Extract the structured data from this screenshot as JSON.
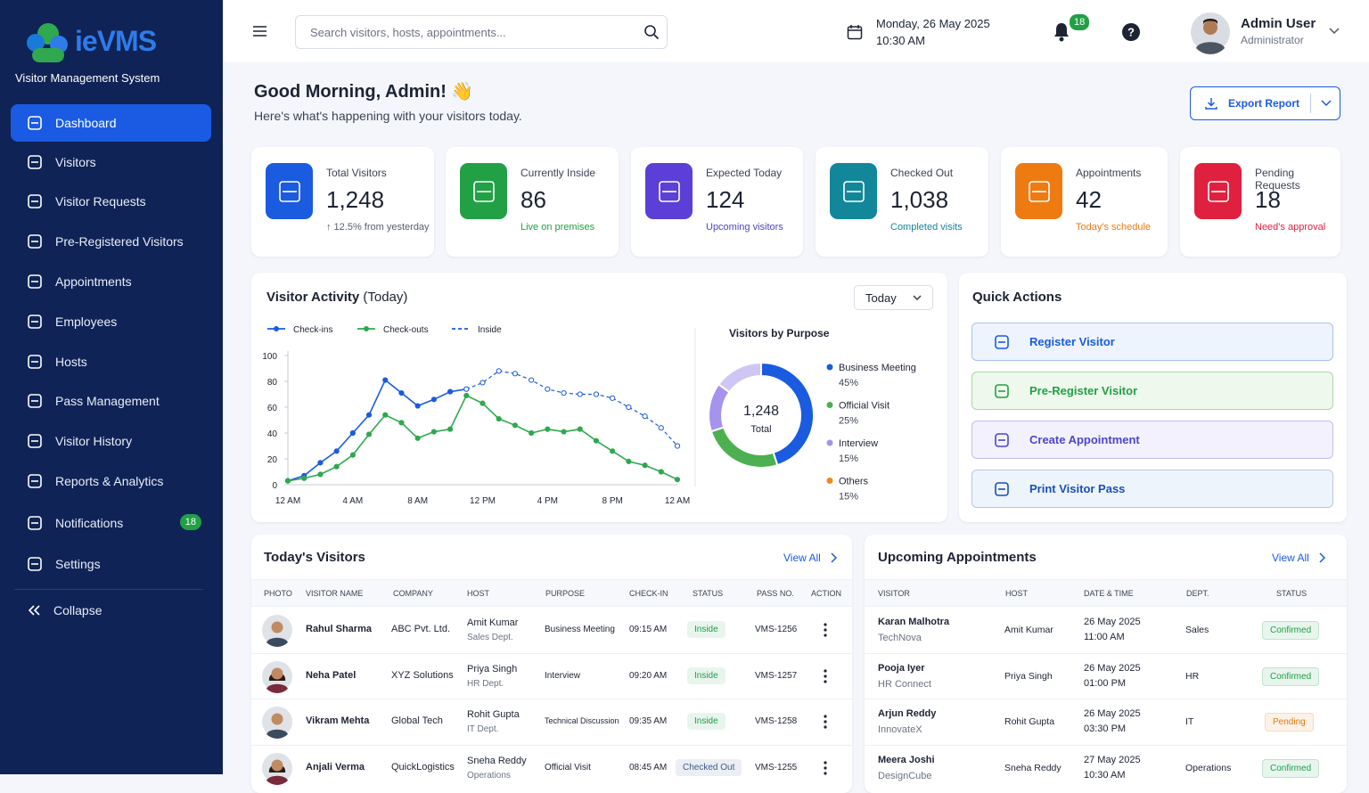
{
  "sidebar": {
    "logo": "ieVMS",
    "tagline": "Visitor Management System",
    "menu": [
      "Dashboard",
      "Visitors",
      "Visitor Requests",
      "Pre-Registered Visitors",
      "Appointments",
      "Employees",
      "Hosts",
      "Pass Management",
      "Visitor History",
      "Reports & Analytics",
      "Notifications",
      "Settings"
    ],
    "notifications_badge": "18",
    "collapse": "Collapse"
  },
  "header": {
    "search_placeholder": "Search visitors, hosts, appointments...",
    "date": "Monday, 26 May 2025",
    "time": "10:30 AM",
    "bell_badge": "18",
    "user_name": "Admin User",
    "user_role": "Administrator"
  },
  "greeting": {
    "title": "Good Morning, Admin! 👋",
    "subtitle": "Here's what's happening with your visitors today.",
    "export": "Export Report"
  },
  "stats": [
    {
      "label": "Total Visitors",
      "value": "1,248",
      "note": "↑ 12.5% from yesterday",
      "color": "#1a5be0",
      "note_color": "#555e6e"
    },
    {
      "label": "Currently Inside",
      "value": "86",
      "note": "Live on premises",
      "color": "#22a045",
      "note_color": "#22a045"
    },
    {
      "label": "Expected Today",
      "value": "124",
      "note": "Upcoming visitors",
      "color": "#5b3fd6",
      "note_color": "#4a47c9"
    },
    {
      "label": "Checked Out",
      "value": "1,038",
      "note": "Completed visits",
      "color": "#12879a",
      "note_color": "#12879a"
    },
    {
      "label": "Appointments",
      "value": "42",
      "note": "Today's schedule",
      "color": "#ee7a12",
      "note_color": "#ee7a12"
    },
    {
      "label": "Pending Requests",
      "value": "18",
      "note": "Need's approval",
      "color": "#e0203f",
      "note_color": "#e0203f"
    }
  ],
  "visitor_activity": {
    "title": "Visitor Activity",
    "title_suffix": "(Today)",
    "filter": "Today",
    "chart": {
      "type": "line",
      "categories": [
        "12 AM",
        null,
        null,
        null,
        "4 AM",
        null,
        null,
        null,
        "8 AM",
        null,
        null,
        null,
        "12 PM",
        null,
        null,
        null,
        "4 PM",
        null,
        null,
        null,
        "8 PM",
        null,
        null,
        null,
        "12 AM"
      ],
      "series": [
        {
          "name": "Check-ins",
          "color": "#1a5be0",
          "dashed": false,
          "values": [
            3,
            7,
            17,
            26,
            40,
            54,
            81,
            71,
            61,
            66,
            72,
            74,
            null,
            null,
            null,
            null,
            null,
            null,
            null,
            null,
            null,
            null,
            null,
            null,
            null
          ]
        },
        {
          "name": "Check-outs",
          "color": "#2fa84f",
          "dashed": false,
          "values": [
            3,
            5,
            8,
            14,
            23,
            39,
            54,
            48,
            36,
            41,
            43,
            69,
            63,
            51,
            46,
            40,
            43,
            41,
            43,
            34,
            26,
            18,
            15,
            10,
            4
          ]
        },
        {
          "name": "Inside",
          "color": "#1a5be0",
          "dashed": true,
          "values": [
            null,
            null,
            null,
            null,
            null,
            null,
            null,
            null,
            null,
            null,
            null,
            74,
            79,
            88,
            86,
            81,
            74,
            71,
            70,
            70,
            67,
            60,
            53,
            44,
            30
          ]
        }
      ],
      "ylim": [
        0,
        100
      ],
      "yticks": [
        0,
        20,
        40,
        60,
        80,
        100
      ]
    }
  },
  "purpose": {
    "type": "pie",
    "title": "Visitors by Purpose",
    "center_value": "1,248",
    "center_label": "Total",
    "categories": [
      "Business Meeting",
      "Official Visit",
      "Interview",
      "Others"
    ],
    "values": [
      45,
      25,
      15,
      15
    ],
    "value_labels": [
      "45%",
      "25%",
      "15%",
      "15%"
    ],
    "colors": [
      "#1a5be0",
      "#4cb050",
      "#a593ee",
      "#cfc6f5"
    ],
    "legend_colors": [
      "#1a5be0",
      "#4cb050",
      "#a593ee",
      "#ee8a1a"
    ]
  },
  "quick_actions": {
    "title": "Quick Actions",
    "items": [
      "Register Visitor",
      "Pre-Register Visitor",
      "Create Appointment",
      "Print Visitor Pass"
    ]
  },
  "todays_visitors": {
    "title": "Today's Visitors",
    "view_all": "View All",
    "columns": [
      "PHOTO",
      "VISITOR NAME",
      "COMPANY",
      "HOST",
      "PURPOSE",
      "CHECK-IN",
      "STATUS",
      "PASS NO.",
      "ACTION"
    ],
    "rows": [
      {
        "name": "Rahul Sharma",
        "company": "ABC Pvt. Ltd.",
        "host": "Amit Kumar",
        "host_dept": "Sales Dept.",
        "purpose": "Business Meeting",
        "check_in": "09:15 AM",
        "status": "Inside",
        "status_color": "#1e9e4a",
        "pass_no": "VMS-1256"
      },
      {
        "name": "Neha Patel",
        "company": "XYZ Solutions",
        "host": "Priya Singh",
        "host_dept": "HR Dept.",
        "purpose": "Interview",
        "check_in": "09:20 AM",
        "status": "Inside",
        "status_color": "#1e9e4a",
        "pass_no": "VMS-1257"
      },
      {
        "name": "Vikram Mehta",
        "company": "Global Tech",
        "host": "Rohit Gupta",
        "host_dept": "IT Dept.",
        "purpose": "Technical Discussion",
        "check_in": "09:35 AM",
        "status": "Inside",
        "status_color": "#1e9e4a",
        "pass_no": "VMS-1258"
      },
      {
        "name": "Anjali Verma",
        "company": "QuickLogistics",
        "host": "Sneha Reddy",
        "host_dept": "Operations",
        "purpose": "Official Visit",
        "check_in": "08:45 AM",
        "status": "Checked Out",
        "status_color": "#3d5a8a",
        "pass_no": "VMS-1255"
      }
    ]
  },
  "upcoming": {
    "title": "Upcoming Appointments",
    "view_all": "View All",
    "columns": [
      "VISITOR",
      "HOST",
      "DATE & TIME",
      "DEPT.",
      "STATUS"
    ],
    "rows": [
      {
        "visitor": "Karan Malhotra",
        "company": "TechNova",
        "host": "Amit Kumar",
        "date": "26 May 2025",
        "time": "11:00 AM",
        "dept": "Sales",
        "status": "Confirmed",
        "status_color": "#1e9e4a"
      },
      {
        "visitor": "Pooja Iyer",
        "company": "HR Connect",
        "host": "Priya Singh",
        "date": "26 May 2025",
        "time": "01:00 PM",
        "dept": "HR",
        "status": "Confirmed",
        "status_color": "#1e9e4a"
      },
      {
        "visitor": "Arjun Reddy",
        "company": "InnovateX",
        "host": "Rohit Gupta",
        "date": "26 May 2025",
        "time": "03:30 PM",
        "dept": "IT",
        "status": "Pending",
        "status_color": "#e07b12"
      },
      {
        "visitor": "Meera Joshi",
        "company": "DesignCube",
        "host": "Sneha Reddy",
        "date": "27 May 2025",
        "time": "10:30 AM",
        "dept": "Operations",
        "status": "Confirmed",
        "status_color": "#1e9e4a"
      }
    ]
  }
}
